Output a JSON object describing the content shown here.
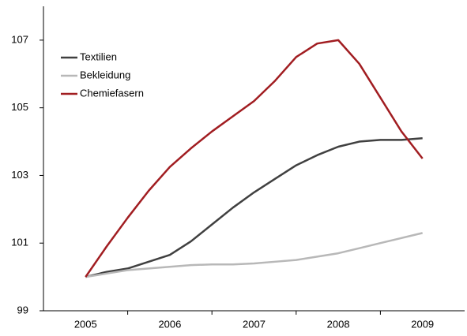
{
  "chart_data": {
    "type": "line",
    "x": [
      2005,
      2005.25,
      2005.5,
      2005.75,
      2006,
      2006.25,
      2006.5,
      2006.75,
      2007,
      2007.25,
      2007.5,
      2007.75,
      2008,
      2008.25,
      2008.5,
      2008.75,
      2009
    ],
    "series": [
      {
        "name": "Textilien",
        "color": "#404040",
        "values": [
          100.0,
          100.15,
          100.25,
          100.45,
          100.65,
          101.05,
          101.55,
          102.05,
          102.5,
          102.9,
          103.3,
          103.6,
          103.85,
          104.0,
          104.05,
          104.05,
          104.1
        ]
      },
      {
        "name": "Bekleidung",
        "color": "#b8b8b8",
        "values": [
          100.0,
          100.1,
          100.2,
          100.25,
          100.3,
          100.35,
          100.37,
          100.37,
          100.4,
          100.45,
          100.5,
          100.6,
          100.7,
          100.85,
          101.0,
          101.15,
          101.3
        ]
      },
      {
        "name": "Chemiefasern",
        "color": "#a11d21",
        "values": [
          100.0,
          100.9,
          101.75,
          102.55,
          103.25,
          103.8,
          104.3,
          104.75,
          105.2,
          105.8,
          106.5,
          106.9,
          107.0,
          106.3,
          105.3,
          104.3,
          103.5
        ]
      }
    ],
    "xlim": [
      2004.5,
      2009.5
    ],
    "xticks": [
      2005,
      2006,
      2007,
      2008,
      2009
    ],
    "ylim": [
      99,
      108
    ],
    "yticks": [
      99,
      101,
      103,
      105,
      107
    ],
    "grid": false,
    "legend": "top-left"
  }
}
